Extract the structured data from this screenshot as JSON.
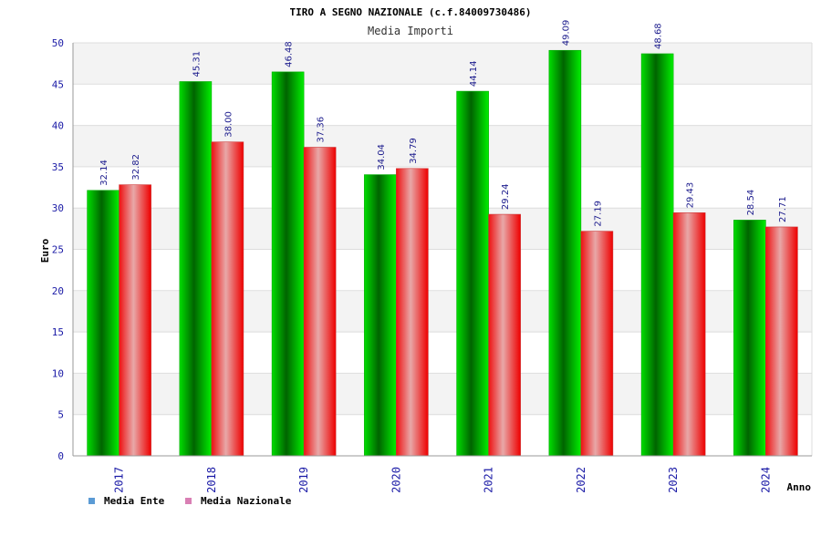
{
  "chart_data": {
    "type": "bar",
    "title": "TIRO A SEGNO NAZIONALE (c.f.84009730486)",
    "subtitle": "Media Importi",
    "xlabel": "Anno",
    "ylabel": "Euro",
    "ylim": [
      0,
      50
    ],
    "yticks": [
      0,
      5,
      10,
      15,
      20,
      25,
      30,
      35,
      40,
      45,
      50
    ],
    "categories": [
      "2017",
      "2018",
      "2019",
      "2020",
      "2021",
      "2022",
      "2023",
      "2024"
    ],
    "series": [
      {
        "name": "Media Ente",
        "values": [
          32.14,
          45.31,
          46.48,
          34.04,
          44.14,
          49.09,
          48.68,
          28.54
        ],
        "labels": [
          "32.14",
          "45.31",
          "46.48",
          "34.04",
          "44.14",
          "49.09",
          "48.68",
          "28.54"
        ],
        "legend_color": "#5b9bd5"
      },
      {
        "name": "Media Nazionale",
        "values": [
          32.82,
          38.0,
          37.36,
          34.79,
          29.24,
          27.19,
          29.43,
          27.71
        ],
        "labels": [
          "32.82",
          "38.00",
          "37.36",
          "34.79",
          "29.24",
          "27.19",
          "29.43",
          "27.71"
        ],
        "legend_color": "#d97fb4"
      }
    ],
    "grid": true,
    "legend_position": "bottom-left",
    "colors": {
      "ente_dark": "#006600",
      "ente_light": "#00ee00",
      "nazionale_dark": "#ee0000",
      "nazionale_light": "#e6a0a0",
      "band": "#f3f3f3",
      "gridline": "#dddddd"
    }
  }
}
